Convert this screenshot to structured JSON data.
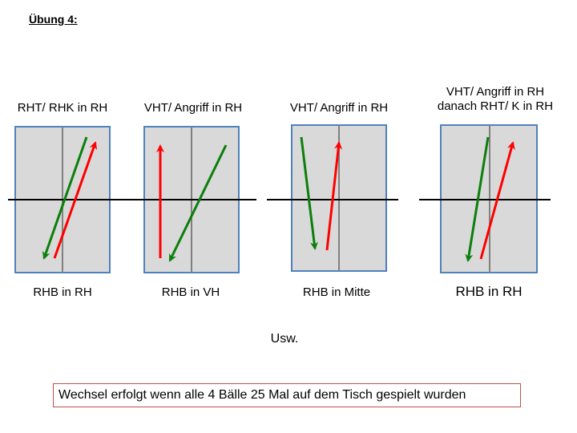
{
  "title": "Übung 4:",
  "colors": {
    "table_fill": "#d9d9d9",
    "table_border": "#4f81bd",
    "green_arrow": "#0b7f0b",
    "red_arrow": "#ff0000"
  },
  "diagrams": [
    {
      "top_label": "RHT/ RHK in RH",
      "bottom_label": "RHB in RH"
    },
    {
      "top_label": "VHT/ Angriff in RH",
      "bottom_label": "RHB in VH"
    },
    {
      "top_label": "VHT/ Angriff in RH",
      "bottom_label": "RHB in Mitte"
    },
    {
      "top_label_line1": "VHT/ Angriff in RH",
      "top_label_line2": "danach RHT/ K in RH",
      "bottom_label": "RHB in RH"
    }
  ],
  "usw": "Usw.",
  "note": "Wechsel erfolgt wenn alle 4 Bälle 25 Mal auf dem Tisch gespielt wurden"
}
